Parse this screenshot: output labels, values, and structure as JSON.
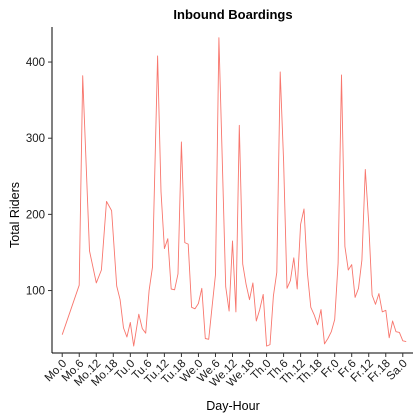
{
  "chart_data": {
    "type": "line",
    "title": "Inbound Boardings",
    "xlabel": "Day-Hour",
    "ylabel": "Total Riders",
    "ylim": [
      18,
      446
    ],
    "yticks": [
      100,
      200,
      300,
      400
    ],
    "grid": false,
    "legend": "none",
    "line_color": "#F8766D",
    "x_tick_labels": [
      "Mo.0",
      "Mo.6",
      "Mo.12",
      "Mo.18",
      "Tu.0",
      "Tu.6",
      "Tu.12",
      "Tu.18",
      "We.0",
      "We.6",
      "We.12",
      "We.18",
      "Th.0",
      "Th.6",
      "Th.12",
      "Th.18",
      "Fr.0",
      "Fr.6",
      "Fr.12",
      "Fr.18",
      "Sa.0"
    ],
    "series": [
      {
        "x": [
          0.0,
          1.0,
          1.2,
          1.6,
          2.0,
          2.3,
          2.6,
          2.9,
          3.2,
          3.4,
          3.6,
          3.8,
          4.0,
          4.2,
          4.5,
          4.7,
          4.9,
          5.1,
          5.3,
          5.6,
          5.8,
          6.0,
          6.2,
          6.4,
          6.6,
          6.8,
          7.0,
          7.2,
          7.4,
          7.6,
          7.8,
          8.0,
          8.2,
          8.4,
          8.6,
          8.8,
          9.0,
          9.2,
          9.4,
          9.6,
          9.8,
          10.0,
          10.2,
          10.4,
          10.6,
          10.8,
          11.0,
          11.2,
          11.4,
          11.6,
          11.8,
          12.0,
          12.2,
          12.4,
          12.6,
          12.8,
          13.0,
          13.2,
          13.4,
          13.6,
          13.8,
          14.0,
          14.2,
          14.4,
          14.6,
          14.8,
          15.0,
          15.2,
          15.4,
          15.6,
          15.8,
          16.0,
          16.2,
          16.4,
          16.6,
          16.8,
          17.0,
          17.2,
          17.4,
          17.6,
          17.8,
          18.0,
          18.2,
          18.4,
          18.6,
          18.8,
          19.0,
          19.2,
          19.4,
          19.6,
          19.8,
          20.0,
          20.2
        ],
        "values": [
          42,
          107,
          382,
          152,
          110,
          127,
          217,
          205,
          106,
          88,
          51,
          39,
          58,
          27,
          69,
          50,
          44,
          100,
          131,
          408,
          230,
          155,
          168,
          102,
          101,
          122,
          295,
          163,
          161,
          78,
          76,
          83,
          103,
          37,
          36,
          79,
          121,
          432,
          270,
          105,
          73,
          165,
          72,
          317,
          135,
          108,
          88,
          110,
          60,
          75,
          95,
          27,
          29,
          93,
          124,
          387,
          270,
          103,
          113,
          143,
          102,
          187,
          207,
          123,
          78,
          68,
          55,
          75,
          30,
          37,
          46,
          62,
          136,
          383,
          158,
          127,
          134,
          91,
          103,
          140,
          259,
          189,
          94,
          82,
          96,
          72,
          74,
          38,
          60,
          46,
          45,
          34,
          33
        ]
      }
    ]
  }
}
